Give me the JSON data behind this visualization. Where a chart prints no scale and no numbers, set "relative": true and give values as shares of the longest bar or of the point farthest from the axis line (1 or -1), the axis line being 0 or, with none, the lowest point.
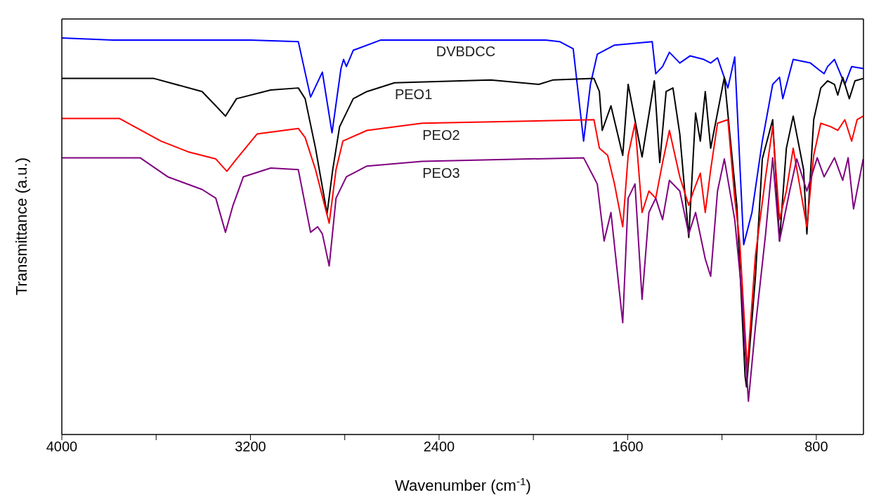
{
  "chart_data": {
    "type": "line",
    "xlabel": "Wavenumber (cm$^{-1}$)",
    "ylabel": "Transmittance (a.u.)",
    "relative": true,
    "marker": "none",
    "line_style": "solid",
    "xlim": [
      4000,
      600
    ],
    "xticks": [
      4000,
      {
        "value": 3600,
        "label": null
      },
      3200,
      {
        "value": 2800,
        "label": null
      },
      2400,
      {
        "value": 2000,
        "label": null
      },
      1600,
      {
        "value": 1200,
        "label": null
      },
      800
    ],
    "series": [
      {
        "name": "DVBDCC",
        "color": "#0000ff",
        "x": [
          4000,
          3784,
          3493,
          3201,
          2997,
          2945,
          2895,
          2854,
          2816,
          2805,
          2793,
          2764,
          2647,
          2414,
          1948,
          1889,
          1831,
          1787,
          1758,
          1729,
          1656,
          1496,
          1481,
          1452,
          1423,
          1379,
          1335,
          1277,
          1248,
          1219,
          1175,
          1146,
          1108,
          1073,
          1029,
          985,
          956,
          942,
          898,
          825,
          787,
          767,
          752,
          723,
          679,
          650,
          601
        ],
        "values": [
          1.0,
          0.995,
          0.995,
          0.995,
          0.991,
          0.851,
          0.914,
          0.761,
          0.923,
          0.946,
          0.928,
          0.969,
          0.995,
          0.995,
          0.995,
          0.991,
          0.973,
          0.74,
          0.883,
          0.959,
          0.982,
          0.991,
          0.91,
          0.928,
          0.964,
          0.937,
          0.955,
          0.946,
          0.937,
          0.95,
          0.874,
          0.952,
          0.479,
          0.56,
          0.74,
          0.883,
          0.901,
          0.847,
          0.946,
          0.937,
          0.919,
          0.91,
          0.928,
          0.946,
          0.883,
          0.928,
          0.923
        ]
      },
      {
        "name": "PEO1",
        "color": "#000000",
        "x": [
          4000,
          3609,
          3405,
          3347,
          3306,
          3259,
          3114,
          2997,
          2968,
          2924,
          2875,
          2851,
          2822,
          2764,
          2706,
          2589,
          2181,
          1977,
          1918,
          1743,
          1720,
          1708,
          1671,
          1621,
          1598,
          1539,
          1487,
          1464,
          1437,
          1408,
          1379,
          1341,
          1312,
          1292,
          1271,
          1248,
          1190,
          1155,
          1137,
          1102,
          1096,
          1058,
          1029,
          985,
          956,
          927,
          898,
          854,
          840,
          811,
          781,
          752,
          723,
          709,
          688,
          660,
          636,
          601
        ],
        "values": [
          0.898,
          0.898,
          0.865,
          0.829,
          0.803,
          0.847,
          0.869,
          0.874,
          0.847,
          0.722,
          0.557,
          0.668,
          0.776,
          0.847,
          0.865,
          0.887,
          0.894,
          0.883,
          0.894,
          0.898,
          0.865,
          0.767,
          0.829,
          0.704,
          0.883,
          0.7,
          0.892,
          0.686,
          0.865,
          0.874,
          0.758,
          0.497,
          0.811,
          0.74,
          0.865,
          0.722,
          0.901,
          0.686,
          0.578,
          0.147,
          0.12,
          0.399,
          0.695,
          0.794,
          0.488,
          0.722,
          0.803,
          0.668,
          0.506,
          0.794,
          0.874,
          0.892,
          0.883,
          0.856,
          0.901,
          0.847,
          0.892,
          0.898
        ]
      },
      {
        "name": "PEO2",
        "color": "#ff0000",
        "x": [
          4000,
          3755,
          3580,
          3464,
          3347,
          3300,
          3259,
          3172,
          2997,
          2968,
          2924,
          2866,
          2837,
          2808,
          2706,
          2472,
          1743,
          1720,
          1685,
          1656,
          1621,
          1598,
          1569,
          1539,
          1510,
          1481,
          1452,
          1423,
          1379,
          1341,
          1321,
          1292,
          1271,
          1248,
          1219,
          1175,
          1146,
          1125,
          1093,
          1058,
          1015,
          985,
          956,
          927,
          898,
          840,
          811,
          781,
          738,
          709,
          679,
          650,
          627,
          601
        ],
        "values": [
          0.797,
          0.797,
          0.74,
          0.713,
          0.695,
          0.664,
          0.695,
          0.758,
          0.772,
          0.749,
          0.668,
          0.533,
          0.668,
          0.74,
          0.767,
          0.785,
          0.794,
          0.722,
          0.704,
          0.632,
          0.524,
          0.704,
          0.785,
          0.56,
          0.614,
          0.596,
          0.686,
          0.767,
          0.65,
          0.578,
          0.614,
          0.659,
          0.56,
          0.668,
          0.785,
          0.794,
          0.596,
          0.488,
          0.165,
          0.452,
          0.65,
          0.776,
          0.542,
          0.614,
          0.722,
          0.524,
          0.704,
          0.785,
          0.776,
          0.767,
          0.794,
          0.74,
          0.794,
          0.803
        ]
      },
      {
        "name": "PEO3",
        "color": "#800080",
        "x": [
          4000,
          3668,
          3551,
          3405,
          3347,
          3306,
          3274,
          3230,
          3114,
          2997,
          2945,
          2915,
          2895,
          2866,
          2837,
          2793,
          2706,
          2472,
          1787,
          1729,
          1700,
          1671,
          1621,
          1598,
          1569,
          1539,
          1510,
          1481,
          1452,
          1423,
          1379,
          1341,
          1312,
          1271,
          1248,
          1219,
          1190,
          1146,
          1117,
          1088,
          1058,
          1015,
          985,
          956,
          913,
          883,
          840,
          796,
          767,
          723,
          688,
          665,
          642,
          601
        ],
        "values": [
          0.698,
          0.698,
          0.65,
          0.618,
          0.596,
          0.51,
          0.578,
          0.65,
          0.672,
          0.668,
          0.51,
          0.524,
          0.506,
          0.425,
          0.596,
          0.65,
          0.677,
          0.689,
          0.698,
          0.632,
          0.488,
          0.56,
          0.282,
          0.596,
          0.632,
          0.341,
          0.56,
          0.596,
          0.542,
          0.641,
          0.614,
          0.506,
          0.56,
          0.443,
          0.399,
          0.614,
          0.695,
          0.542,
          0.363,
          0.084,
          0.273,
          0.506,
          0.698,
          0.488,
          0.614,
          0.695,
          0.614,
          0.698,
          0.65,
          0.698,
          0.641,
          0.698,
          0.569,
          0.695
        ]
      }
    ]
  }
}
